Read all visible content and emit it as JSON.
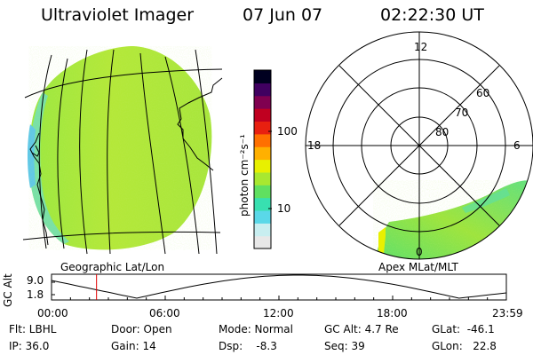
{
  "header": {
    "title": "Ultraviolet Imager",
    "date": "07 Jun 07",
    "time": "02:22:30 UT"
  },
  "colorbar": {
    "label": "photon cm⁻²s⁻¹",
    "tick_100": "100",
    "tick_10": "10",
    "colors": [
      "#e8e8e8",
      "#c8eef0",
      "#5ad8e8",
      "#38e0b0",
      "#60e060",
      "#a8e830",
      "#e8f000",
      "#ffb000",
      "#ff7000",
      "#e82010",
      "#c00020",
      "#800050",
      "#400060",
      "#000020"
    ]
  },
  "polar": {
    "labels": {
      "mlt_12": "12",
      "mlt_18": "18",
      "mlt_6": "6",
      "mlt_0": "0",
      "lat_60": "60",
      "lat_70": "70",
      "lat_80": "80"
    }
  },
  "captions": {
    "left": "Geographic Lat/Lon",
    "right": "Apex MLat/MLT"
  },
  "timeline": {
    "ylabel": "GC Alt",
    "y_high": "9.0",
    "y_low": "1.8",
    "ticks": [
      "00:00",
      "06:00",
      "12:00",
      "18:00",
      "23:59"
    ],
    "marker_color": "#e00000",
    "marker_time_hours": 2.375
  },
  "info": {
    "flt": "Flt: LBHL",
    "ip": "IP: 36.0",
    "door": "Door: Open",
    "gain": "Gain: 14",
    "mode": "Mode: Normal",
    "dsp": "Dsp:    -8.3",
    "gcalt": "GC Alt: 4.7 Re",
    "seq": "Seq: 39",
    "glat": "GLat:  -46.1",
    "glon": "GLon:   22.8"
  }
}
